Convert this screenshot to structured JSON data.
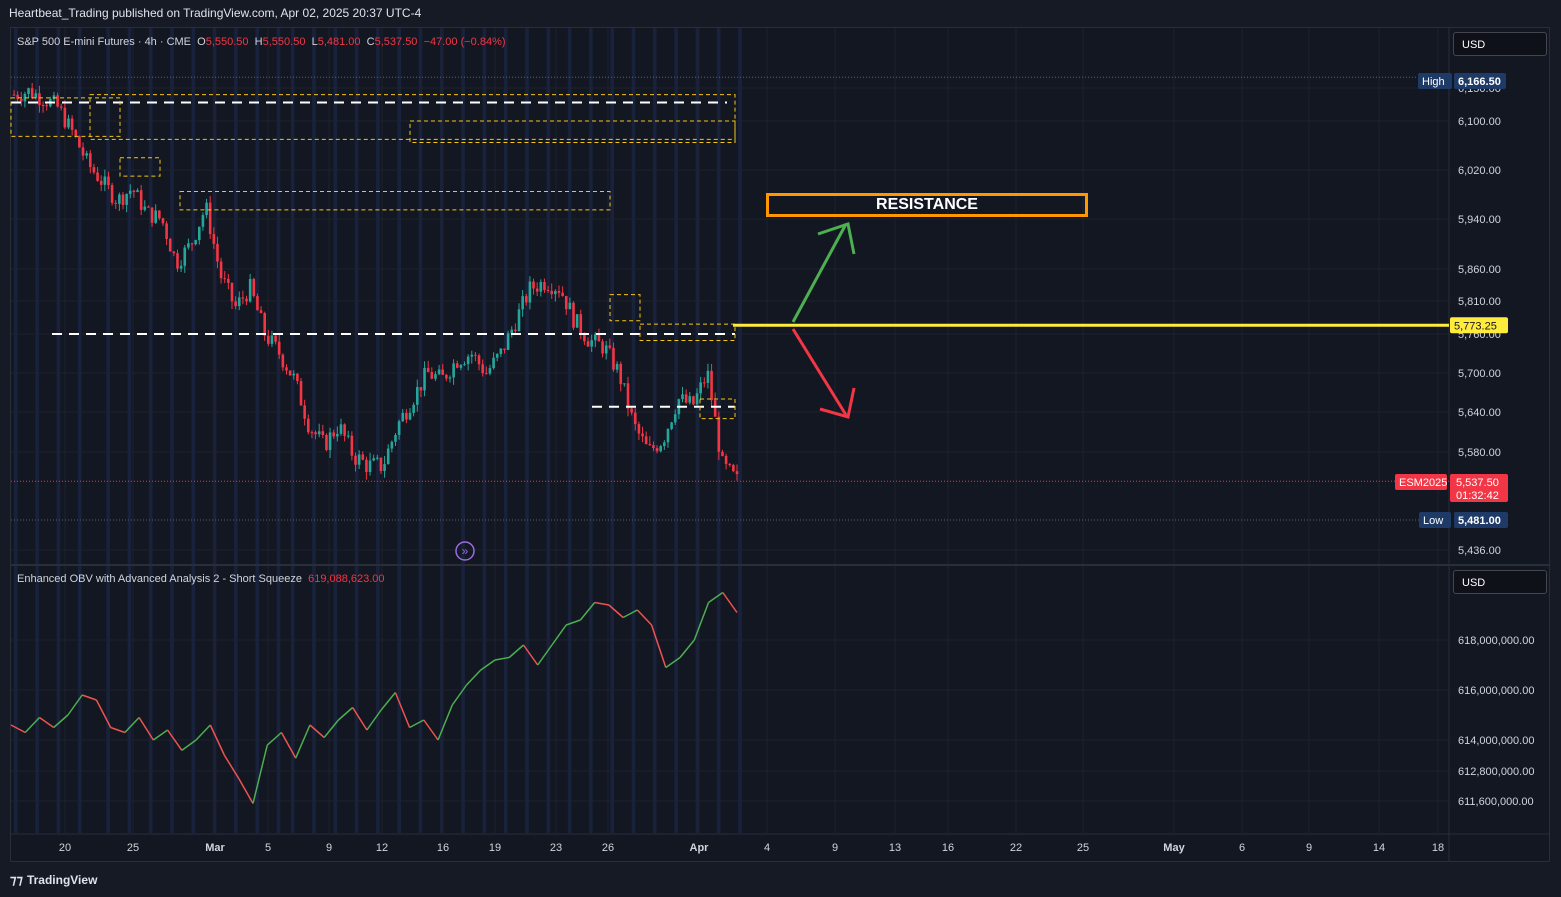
{
  "header": {
    "publisher": "Heartbeat_Trading published on TradingView.com, Apr 02, 2025 20:37 UTC-4"
  },
  "main_legend": {
    "symbol": "S&P 500 E-mini Futures · 4h · CME",
    "o_label": "O",
    "o_value": "5,550.50",
    "h_label": "H",
    "h_value": "5,550.50",
    "l_label": "L",
    "l_value": "5,481.00",
    "c_label": "C",
    "c_value": "5,537.50",
    "change": "−47.00 (−0.84%)"
  },
  "indicator_legend": {
    "name": "Enhanced OBV with Advanced Analysis 2 - Short Squeeze",
    "value": "619,088,623.00"
  },
  "currency": "USD",
  "annotation": {
    "resistance": "RESISTANCE"
  },
  "price_labels": {
    "high_tag": "High",
    "high_value": "6,166.50",
    "low_tag": "Low",
    "low_value": "5,481.00",
    "line_value": "5,773.25",
    "symbol_tag": "ESM2025",
    "last_value": "5,537.50",
    "countdown": "01:32:42"
  },
  "footer": {
    "brand": "TradingView"
  },
  "colors": {
    "bull": "#26a69a",
    "bear": "#f23645",
    "line": "#ffeb3b",
    "box": "#ff9800",
    "up_arrow": "#4caf50",
    "down_arrow": "#f23645"
  },
  "chart_data": [
    {
      "type": "candlestick",
      "title": "S&P 500 E-mini Futures · 4h · CME",
      "y_ticks": [
        "6,150.00",
        "6,100.00",
        "6,020.00",
        "5,940.00",
        "5,860.00",
        "5,810.00",
        "5,760.00",
        "5,700.00",
        "5,640.00",
        "5,580.00",
        "5,436.00"
      ],
      "x_ticks": [
        "20",
        "25",
        "Mar",
        "5",
        "9",
        "12",
        "16",
        "19",
        "23",
        "26",
        "Apr",
        "4",
        "9",
        "13",
        "16",
        "22",
        "25",
        "May",
        "6",
        "9",
        "14",
        "18"
      ],
      "high": 6166.5,
      "low": 5481.0,
      "last": 5537.5,
      "horizontal_level": 5773.25,
      "path_close": [
        6140,
        6145,
        6135,
        6120,
        6080,
        6030,
        6000,
        5970,
        5990,
        5950,
        5940,
        5870,
        5900,
        5960,
        5850,
        5800,
        5830,
        5760,
        5730,
        5690,
        5620,
        5590,
        5620,
        5575,
        5560,
        5560,
        5620,
        5660,
        5700,
        5690,
        5720,
        5730,
        5700,
        5730,
        5780,
        5830,
        5840,
        5830,
        5780,
        5750,
        5740,
        5700,
        5620,
        5580,
        5600,
        5660,
        5650,
        5700,
        5560,
        5537.5
      ]
    },
    {
      "type": "line",
      "title": "Enhanced OBV with Advanced Analysis 2 - Short Squeeze",
      "y_ticks": [
        "618,000,000.00",
        "616,000,000.00",
        "614,000,000.00",
        "612,800,000.00",
        "611,600,000.00"
      ],
      "last": 619088623.0,
      "values": [
        614.6,
        614.3,
        614.9,
        614.5,
        615.0,
        615.8,
        615.6,
        614.5,
        614.3,
        614.9,
        614.0,
        614.4,
        613.6,
        614.0,
        614.6,
        613.4,
        612.5,
        611.5,
        613.8,
        614.3,
        613.3,
        614.6,
        614.1,
        614.8,
        615.3,
        614.4,
        615.2,
        615.9,
        614.5,
        614.8,
        614.0,
        615.4,
        616.2,
        616.8,
        617.2,
        617.3,
        617.8,
        617.0,
        617.8,
        618.6,
        618.8,
        619.5,
        619.4,
        618.9,
        619.2,
        618.6,
        616.9,
        617.3,
        618.0,
        619.5,
        619.9,
        619.1
      ]
    }
  ]
}
